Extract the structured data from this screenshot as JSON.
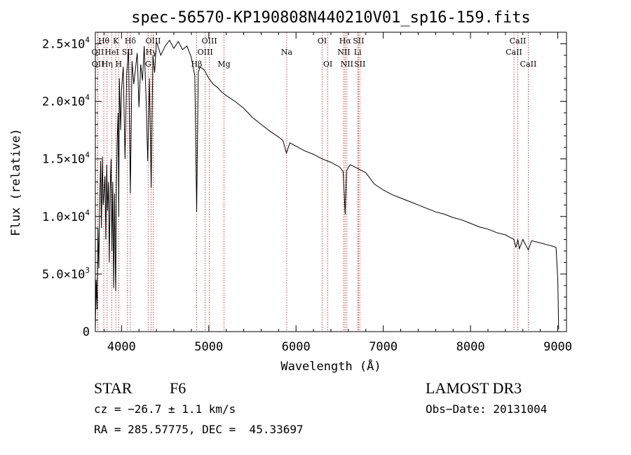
{
  "chart_data": {
    "type": "line",
    "title": "spec-56570-KP190808N440210V01_sp16-159.fits",
    "xlabel": "Wavelength (Å)",
    "ylabel": "Flux (relative)",
    "xlim": [
      3700,
      9100
    ],
    "ylim": [
      0,
      26000
    ],
    "x_ticks": [
      {
        "value": 4000,
        "label": "4000"
      },
      {
        "value": 5000,
        "label": "5000"
      },
      {
        "value": 6000,
        "label": "6000"
      },
      {
        "value": 7000,
        "label": "7000"
      },
      {
        "value": 8000,
        "label": "8000"
      },
      {
        "value": 9000,
        "label": "9000"
      }
    ],
    "y_ticks": [
      {
        "value": 0,
        "mant": "0",
        "exp": ""
      },
      {
        "value": 5000,
        "mant": "5.0×10",
        "exp": "3"
      },
      {
        "value": 10000,
        "mant": "1.0×10",
        "exp": "4"
      },
      {
        "value": 15000,
        "mant": "1.5×10",
        "exp": "4"
      },
      {
        "value": 20000,
        "mant": "2.0×10",
        "exp": "4"
      },
      {
        "value": 25000,
        "mant": "2.5×10",
        "exp": "4"
      }
    ],
    "spectrum": {
      "name": "flux",
      "x": [
        3700,
        3710,
        3720,
        3730,
        3740,
        3750,
        3760,
        3770,
        3780,
        3790,
        3800,
        3810,
        3820,
        3830,
        3840,
        3850,
        3860,
        3870,
        3880,
        3890,
        3900,
        3910,
        3920,
        3930,
        3934,
        3940,
        3950,
        3960,
        3968,
        3975,
        3990,
        4000,
        4020,
        4040,
        4060,
        4080,
        4101,
        4120,
        4140,
        4160,
        4180,
        4200,
        4220,
        4240,
        4260,
        4280,
        4300,
        4320,
        4340,
        4360,
        4380,
        4400,
        4450,
        4500,
        4550,
        4600,
        4650,
        4700,
        4750,
        4800,
        4840,
        4861,
        4880,
        4900,
        4950,
        5000,
        5050,
        5100,
        5150,
        5200,
        5300,
        5400,
        5500,
        5600,
        5700,
        5800,
        5850,
        5890,
        5930,
        6000,
        6100,
        6200,
        6300,
        6400,
        6500,
        6540,
        6563,
        6580,
        6620,
        6700,
        6800,
        6900,
        7000,
        7100,
        7200,
        7300,
        7400,
        7500,
        7600,
        7700,
        7800,
        7900,
        8000,
        8100,
        8200,
        8300,
        8400,
        8498,
        8520,
        8542,
        8560,
        8600,
        8662,
        8700,
        8800,
        8900,
        8950,
        8980,
        9000,
        9010
      ],
      "y": [
        200,
        4500,
        2000,
        9000,
        5500,
        11500,
        14800,
        9000,
        15200,
        11000,
        12000,
        13500,
        8000,
        14500,
        10500,
        13000,
        6000,
        12500,
        15000,
        7000,
        13000,
        3800,
        12000,
        5000,
        3500,
        12500,
        16500,
        19000,
        10000,
        22000,
        17500,
        21000,
        23000,
        15000,
        22500,
        24500,
        12000,
        23500,
        21500,
        22800,
        24200,
        19500,
        23200,
        21800,
        24800,
        20500,
        14800,
        22000,
        12500,
        24000,
        22500,
        25200,
        24000,
        24800,
        25300,
        24600,
        25200,
        24500,
        24800,
        23800,
        22200,
        10400,
        22500,
        23000,
        22700,
        22000,
        21500,
        21200,
        20800,
        20500,
        20000,
        19400,
        18600,
        18000,
        17400,
        16900,
        16600,
        15500,
        16400,
        16100,
        15700,
        15400,
        15000,
        14700,
        14300,
        13900,
        10200,
        14000,
        14500,
        14200,
        13800,
        12800,
        12300,
        11900,
        11600,
        11300,
        11000,
        10700,
        10400,
        10200,
        9900,
        9700,
        9400,
        9100,
        8900,
        8600,
        8400,
        8000,
        7300,
        8000,
        7200,
        8000,
        7100,
        7900,
        7700,
        7500,
        7400,
        7300,
        4500,
        200
      ]
    },
    "lines": [
      {
        "name": "Hθ",
        "wave": 3797,
        "row": 0
      },
      {
        "name": "OII",
        "wave": 3727,
        "row": 1
      },
      {
        "name": "OII",
        "wave": 3729,
        "row": 2
      },
      {
        "name": "Hη",
        "wave": 3835,
        "row": 2
      },
      {
        "name": "HeI",
        "wave": 3889,
        "row": 1
      },
      {
        "name": "K",
        "wave": 3934,
        "row": 0
      },
      {
        "name": "H",
        "wave": 3968,
        "row": 2
      },
      {
        "name": "SII",
        "wave": 4069,
        "row": 1
      },
      {
        "name": "Hδ",
        "wave": 4101,
        "row": 0
      },
      {
        "name": "G",
        "wave": 4305,
        "row": 2
      },
      {
        "name": "Hγ",
        "wave": 4340,
        "row": 1
      },
      {
        "name": "OIII",
        "wave": 4363,
        "row": 0
      },
      {
        "name": "Hβ",
        "wave": 4861,
        "row": 2
      },
      {
        "name": "OIII",
        "wave": 4959,
        "row": 1
      },
      {
        "name": "OIII",
        "wave": 5007,
        "row": 0
      },
      {
        "name": "Mg",
        "wave": 5175,
        "row": 2
      },
      {
        "name": "Na",
        "wave": 5893,
        "row": 1
      },
      {
        "name": "OI",
        "wave": 6300,
        "row": 0
      },
      {
        "name": "OI",
        "wave": 6364,
        "row": 2
      },
      {
        "name": "NII",
        "wave": 6548,
        "row": 1
      },
      {
        "name": "Hα",
        "wave": 6563,
        "row": 0
      },
      {
        "name": "NII",
        "wave": 6583,
        "row": 2
      },
      {
        "name": "Li",
        "wave": 6707,
        "row": 1
      },
      {
        "name": "SII",
        "wave": 6716,
        "row": 0
      },
      {
        "name": "SII",
        "wave": 6731,
        "row": 2
      },
      {
        "name": "CaII",
        "wave": 8498,
        "row": 1
      },
      {
        "name": "CaII",
        "wave": 8542,
        "row": 0
      },
      {
        "name": "CaII",
        "wave": 8662,
        "row": 2
      }
    ]
  },
  "info": {
    "class": "STAR",
    "subclass": "F6",
    "survey": "LAMOST DR3",
    "cz": "cz = −26.7 ± 1.1 km/s",
    "obs_date": "Obs−Date: 20131004",
    "coords": "RA = 285.57775, DEC =  45.33697"
  }
}
